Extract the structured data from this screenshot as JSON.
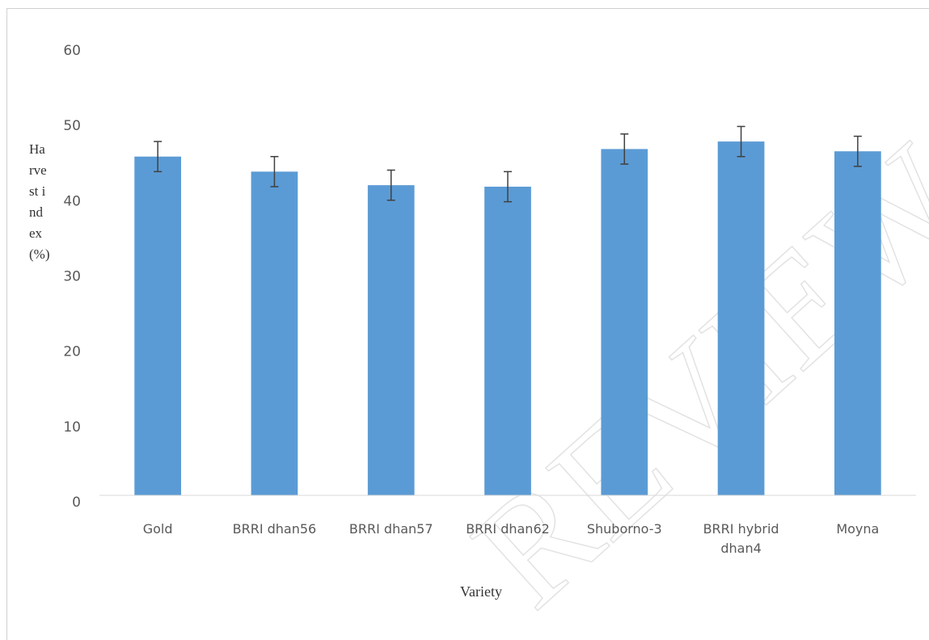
{
  "chart_data": {
    "type": "bar",
    "categories": [
      "Gold",
      "BRRI dhan56",
      "BRRI dhan57",
      "BRRI dhan62",
      "Shuborno-3",
      "BRRI hybrid dhan4",
      "Moyna"
    ],
    "values": [
      45,
      43,
      41.2,
      41,
      46,
      47,
      45.7
    ],
    "errors": [
      2,
      2,
      2,
      2,
      2,
      2,
      2
    ],
    "color": "#5b9bd5",
    "ylim": [
      0,
      60
    ],
    "yticks": [
      0,
      10,
      20,
      30,
      40,
      50,
      60
    ],
    "grid": false,
    "xlabel": "Variety",
    "ylabel": "Harvest index (%)",
    "watermark": "REVIEW"
  }
}
